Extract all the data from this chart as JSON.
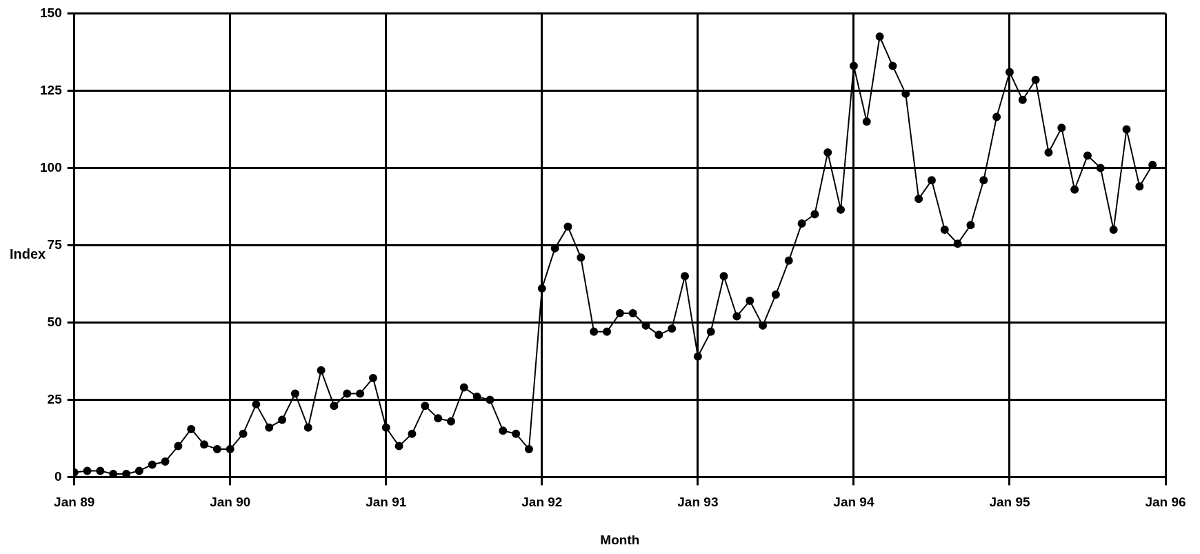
{
  "chart_data": {
    "type": "line",
    "xlabel": "Month",
    "ylabel": "Index",
    "x": [
      "1989-01",
      "1989-02",
      "1989-03",
      "1989-04",
      "1989-05",
      "1989-06",
      "1989-07",
      "1989-08",
      "1989-09",
      "1989-10",
      "1989-11",
      "1989-12",
      "1990-01",
      "1990-02",
      "1990-03",
      "1990-04",
      "1990-05",
      "1990-06",
      "1990-07",
      "1990-08",
      "1990-09",
      "1990-10",
      "1990-11",
      "1990-12",
      "1991-01",
      "1991-02",
      "1991-03",
      "1991-04",
      "1991-05",
      "1991-06",
      "1991-07",
      "1991-08",
      "1991-09",
      "1991-10",
      "1991-11",
      "1991-12",
      "1992-01",
      "1992-02",
      "1992-03",
      "1992-04",
      "1992-05",
      "1992-06",
      "1992-07",
      "1992-08",
      "1992-09",
      "1992-10",
      "1992-11",
      "1992-12",
      "1993-01",
      "1993-02",
      "1993-03",
      "1993-04",
      "1993-05",
      "1993-06",
      "1993-07",
      "1993-08",
      "1993-09",
      "1993-10",
      "1993-11",
      "1993-12",
      "1994-01",
      "1994-02",
      "1994-03",
      "1994-04",
      "1994-05",
      "1994-06",
      "1994-07",
      "1994-08",
      "1994-09",
      "1994-10",
      "1994-11",
      "1994-12",
      "1995-01",
      "1995-02",
      "1995-03",
      "1995-04",
      "1995-05",
      "1995-06",
      "1995-07",
      "1995-08",
      "1995-09",
      "1995-10",
      "1995-11",
      "1995-12"
    ],
    "series": [
      {
        "color": "#000000",
        "values": [
          1.5,
          2,
          2,
          1,
          1,
          2,
          4,
          5,
          10,
          15.5,
          10.5,
          9,
          9,
          14,
          23.5,
          16,
          18.5,
          27,
          16,
          34.5,
          23,
          27,
          27,
          32,
          16,
          10,
          14,
          23,
          19,
          18,
          29,
          26,
          25,
          15,
          14,
          9,
          61,
          74,
          81,
          71,
          47,
          47,
          53,
          53,
          49,
          46,
          48,
          65,
          39,
          47,
          65,
          52,
          57,
          49,
          59,
          70,
          82,
          85,
          105,
          86.5,
          133,
          115,
          142.5,
          133,
          124,
          90,
          96,
          80,
          75.5,
          81.5,
          96,
          116.5,
          131,
          122,
          128.5,
          105,
          113,
          93,
          104,
          100,
          80,
          112.5,
          94,
          101
        ]
      }
    ],
    "xlim": [
      "1989-01",
      "1996-01"
    ],
    "xticks": [
      {
        "value": "1989-01",
        "label": "Jan 89"
      },
      {
        "value": "1990-01",
        "label": "Jan 90"
      },
      {
        "value": "1991-01",
        "label": "Jan 91"
      },
      {
        "value": "1992-01",
        "label": "Jan 92"
      },
      {
        "value": "1993-01",
        "label": "Jan 93"
      },
      {
        "value": "1994-01",
        "label": "Jan 94"
      },
      {
        "value": "1995-01",
        "label": "Jan 95"
      },
      {
        "value": "1996-01",
        "label": "Jan 96"
      }
    ],
    "ylim": [
      0,
      150
    ],
    "yticks": [
      0,
      25,
      50,
      75,
      100,
      125,
      150
    ],
    "grid": true,
    "legend": false,
    "marker": "circle",
    "line_style": "solid"
  }
}
